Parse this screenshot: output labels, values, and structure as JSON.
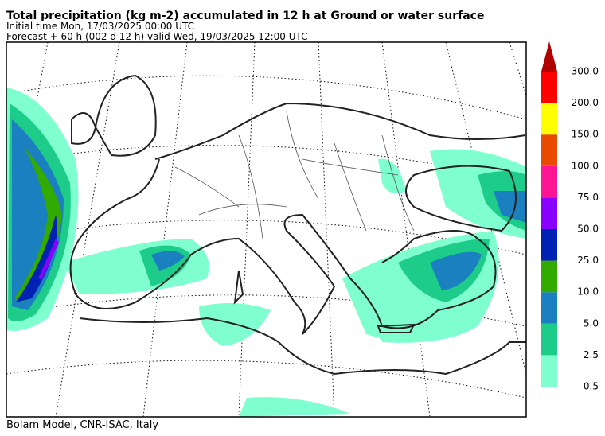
{
  "header": {
    "title": "Total precipitation (kg m-2) accumulated in  12 h at Ground or water surface",
    "line2": "Initial time  Mon, 17/03/2025  00:00 UTC",
    "line3": "Forecast  +  60 h  (002 d 12 h)  valid Wed, 19/03/2025 12:00 UTC"
  },
  "colorbar": {
    "labels": [
      "0.5",
      "2.5",
      "5.0",
      "10.0",
      "25.0",
      "50.0",
      "75.0",
      "100.0",
      "150.0",
      "200.0",
      "300.0"
    ],
    "colors": [
      "#7fffd0",
      "#1ecc8a",
      "#1a80c0",
      "#33aa00",
      "#0022b4",
      "#8800ff",
      "#ff1493",
      "#e84a00",
      "#ffff00",
      "#ff0000"
    ],
    "over_color": "#b00000"
  },
  "footer": {
    "credit": "Bolam Model, CNR-ISAC, Italy"
  }
}
